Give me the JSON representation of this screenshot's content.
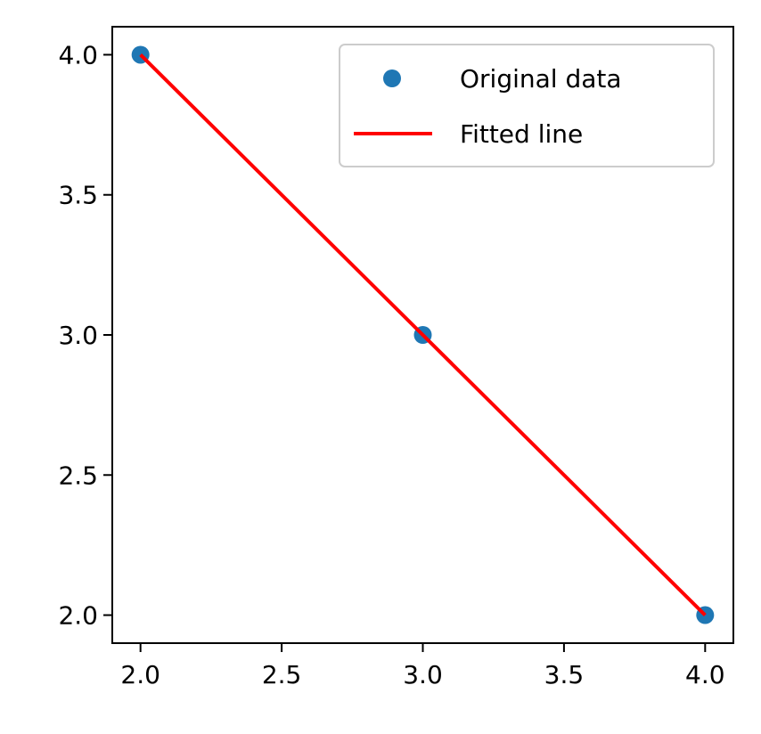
{
  "chart_data": {
    "type": "scatter",
    "title": "",
    "xlabel": "",
    "ylabel": "",
    "xlim": [
      1.9,
      4.1
    ],
    "ylim": [
      1.9,
      4.1
    ],
    "xticks": [
      2.0,
      2.5,
      3.0,
      3.5,
      4.0
    ],
    "yticks": [
      2.0,
      2.5,
      3.0,
      3.5,
      4.0
    ],
    "xtick_labels": [
      "2.0",
      "2.5",
      "3.0",
      "3.5",
      "4.0"
    ],
    "ytick_labels": [
      "2.0",
      "2.5",
      "3.0",
      "3.5",
      "4.0"
    ],
    "grid": false,
    "legend_position": "top-right",
    "series": [
      {
        "name": "Original data",
        "kind": "scatter",
        "color": "#1f77b4",
        "x": [
          2,
          3,
          4
        ],
        "y": [
          4,
          3,
          2
        ]
      },
      {
        "name": "Fitted line",
        "kind": "line",
        "color": "#ff0000",
        "x": [
          2,
          4
        ],
        "y": [
          4,
          2
        ]
      }
    ]
  }
}
